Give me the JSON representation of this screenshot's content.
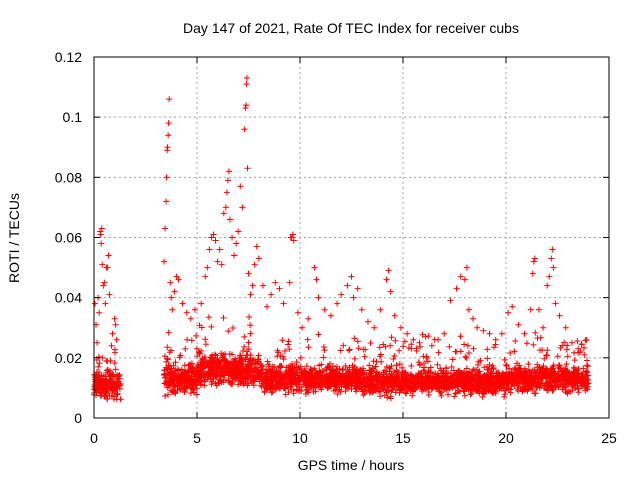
{
  "chart_data": {
    "type": "scatter",
    "title": "Day 147 of 2021, Rate Of TEC Index for receiver cubs",
    "xlabel": "GPS time / hours",
    "ylabel": "ROTI / TECUs",
    "xlim": [
      0,
      25
    ],
    "ylim": [
      0,
      0.12
    ],
    "xticks": [
      0,
      5,
      10,
      15,
      20,
      25
    ],
    "xtick_labels": [
      "0",
      "5",
      "10",
      "15",
      "20",
      "25"
    ],
    "yticks": [
      0,
      0.02,
      0.04,
      0.06,
      0.08,
      0.1,
      0.12
    ],
    "ytick_labels": [
      "0",
      "0.02",
      "0.04",
      "0.06",
      "0.08",
      "0.1",
      "0.12"
    ],
    "grid": true,
    "marker": "+",
    "color": "#ff0000",
    "series": [
      {
        "name": "ROTI",
        "density_profile": [
          {
            "x_start": 0.0,
            "x_end": 1.3,
            "median": 0.011,
            "spread": 0.006
          },
          {
            "x_start": 3.4,
            "x_end": 5.0,
            "median": 0.013,
            "spread": 0.007
          },
          {
            "x_start": 5.0,
            "x_end": 8.0,
            "median": 0.016,
            "spread": 0.008
          },
          {
            "x_start": 8.0,
            "x_end": 13.0,
            "median": 0.013,
            "spread": 0.006
          },
          {
            "x_start": 13.0,
            "x_end": 20.0,
            "median": 0.012,
            "spread": 0.006
          },
          {
            "x_start": 20.0,
            "x_end": 24.0,
            "median": 0.013,
            "spread": 0.006
          }
        ],
        "points": [
          [
            0.05,
            0.038
          ],
          [
            0.1,
            0.031
          ],
          [
            0.15,
            0.025
          ],
          [
            0.2,
            0.04
          ],
          [
            0.25,
            0.035
          ],
          [
            0.3,
            0.062
          ],
          [
            0.32,
            0.061
          ],
          [
            0.35,
            0.058
          ],
          [
            0.38,
            0.063
          ],
          [
            0.4,
            0.051
          ],
          [
            0.45,
            0.044
          ],
          [
            0.5,
            0.045
          ],
          [
            0.55,
            0.038
          ],
          [
            0.6,
            0.05
          ],
          [
            0.65,
            0.05
          ],
          [
            0.7,
            0.054
          ],
          [
            0.75,
            0.041
          ],
          [
            0.85,
            0.024
          ],
          [
            0.9,
            0.028
          ],
          [
            1.0,
            0.033
          ],
          [
            1.05,
            0.031
          ],
          [
            1.1,
            0.026
          ],
          [
            0.2,
            0.017
          ],
          [
            0.4,
            0.02
          ],
          [
            0.8,
            0.019
          ],
          [
            3.4,
            0.052
          ],
          [
            3.45,
            0.063
          ],
          [
            3.5,
            0.072
          ],
          [
            3.52,
            0.08
          ],
          [
            3.55,
            0.089
          ],
          [
            3.57,
            0.09
          ],
          [
            3.6,
            0.094
          ],
          [
            3.62,
            0.098
          ],
          [
            3.65,
            0.106
          ],
          [
            3.7,
            0.045
          ],
          [
            3.75,
            0.04
          ],
          [
            3.8,
            0.036
          ],
          [
            3.9,
            0.042
          ],
          [
            4.0,
            0.047
          ],
          [
            4.1,
            0.046
          ],
          [
            4.3,
            0.038
          ],
          [
            4.5,
            0.035
          ],
          [
            4.7,
            0.033
          ],
          [
            4.9,
            0.036
          ],
          [
            5.2,
            0.038
          ],
          [
            5.4,
            0.047
          ],
          [
            5.5,
            0.05
          ],
          [
            5.6,
            0.056
          ],
          [
            5.7,
            0.06
          ],
          [
            5.8,
            0.061
          ],
          [
            5.9,
            0.059
          ],
          [
            6.0,
            0.052
          ],
          [
            6.1,
            0.056
          ],
          [
            6.2,
            0.051
          ],
          [
            6.3,
            0.068
          ],
          [
            6.4,
            0.07
          ],
          [
            6.45,
            0.075
          ],
          [
            6.5,
            0.079
          ],
          [
            6.55,
            0.082
          ],
          [
            6.6,
            0.066
          ],
          [
            6.7,
            0.06
          ],
          [
            6.8,
            0.054
          ],
          [
            6.9,
            0.058
          ],
          [
            7.0,
            0.062
          ],
          [
            7.1,
            0.077
          ],
          [
            7.2,
            0.07
          ],
          [
            7.3,
            0.096
          ],
          [
            7.35,
            0.103
          ],
          [
            7.38,
            0.104
          ],
          [
            7.4,
            0.111
          ],
          [
            7.42,
            0.113
          ],
          [
            7.45,
            0.083
          ],
          [
            7.5,
            0.048
          ],
          [
            7.6,
            0.041
          ],
          [
            7.7,
            0.044
          ],
          [
            7.8,
            0.051
          ],
          [
            7.9,
            0.057
          ],
          [
            8.0,
            0.053
          ],
          [
            8.2,
            0.044
          ],
          [
            8.4,
            0.037
          ],
          [
            8.6,
            0.041
          ],
          [
            8.8,
            0.045
          ],
          [
            9.0,
            0.043
          ],
          [
            9.2,
            0.038
          ],
          [
            9.5,
            0.045
          ],
          [
            9.55,
            0.06
          ],
          [
            9.6,
            0.06
          ],
          [
            9.65,
            0.061
          ],
          [
            9.7,
            0.059
          ],
          [
            9.9,
            0.035
          ],
          [
            10.1,
            0.03
          ],
          [
            10.4,
            0.033
          ],
          [
            10.7,
            0.05
          ],
          [
            10.8,
            0.046
          ],
          [
            10.9,
            0.04
          ],
          [
            11.2,
            0.036
          ],
          [
            11.5,
            0.034
          ],
          [
            11.8,
            0.038
          ],
          [
            12.0,
            0.041
          ],
          [
            12.3,
            0.044
          ],
          [
            12.5,
            0.047
          ],
          [
            12.6,
            0.04
          ],
          [
            12.8,
            0.043
          ],
          [
            13.0,
            0.036
          ],
          [
            13.3,
            0.032
          ],
          [
            13.6,
            0.03
          ],
          [
            13.9,
            0.036
          ],
          [
            14.2,
            0.046
          ],
          [
            14.3,
            0.049
          ],
          [
            14.4,
            0.042
          ],
          [
            14.6,
            0.034
          ],
          [
            14.9,
            0.03
          ],
          [
            15.2,
            0.028
          ],
          [
            15.5,
            0.026
          ],
          [
            15.8,
            0.025
          ],
          [
            16.1,
            0.027
          ],
          [
            16.4,
            0.024
          ],
          [
            16.7,
            0.026
          ],
          [
            17.0,
            0.028
          ],
          [
            17.3,
            0.039
          ],
          [
            17.6,
            0.043
          ],
          [
            17.8,
            0.047
          ],
          [
            18.0,
            0.046
          ],
          [
            18.1,
            0.05
          ],
          [
            18.2,
            0.036
          ],
          [
            18.4,
            0.033
          ],
          [
            18.6,
            0.03
          ],
          [
            18.9,
            0.029
          ],
          [
            19.2,
            0.028
          ],
          [
            19.5,
            0.026
          ],
          [
            19.8,
            0.028
          ],
          [
            20.1,
            0.035
          ],
          [
            20.3,
            0.037
          ],
          [
            20.6,
            0.031
          ],
          [
            20.9,
            0.028
          ],
          [
            21.2,
            0.036
          ],
          [
            21.3,
            0.048
          ],
          [
            21.35,
            0.052
          ],
          [
            21.4,
            0.053
          ],
          [
            21.6,
            0.036
          ],
          [
            21.8,
            0.03
          ],
          [
            22.0,
            0.044
          ],
          [
            22.1,
            0.047
          ],
          [
            22.2,
            0.053
          ],
          [
            22.25,
            0.056
          ],
          [
            22.3,
            0.05
          ],
          [
            22.4,
            0.038
          ],
          [
            22.6,
            0.034
          ],
          [
            22.9,
            0.03
          ],
          [
            23.2,
            0.025
          ],
          [
            23.5,
            0.023
          ],
          [
            23.8,
            0.021
          ]
        ]
      }
    ]
  }
}
